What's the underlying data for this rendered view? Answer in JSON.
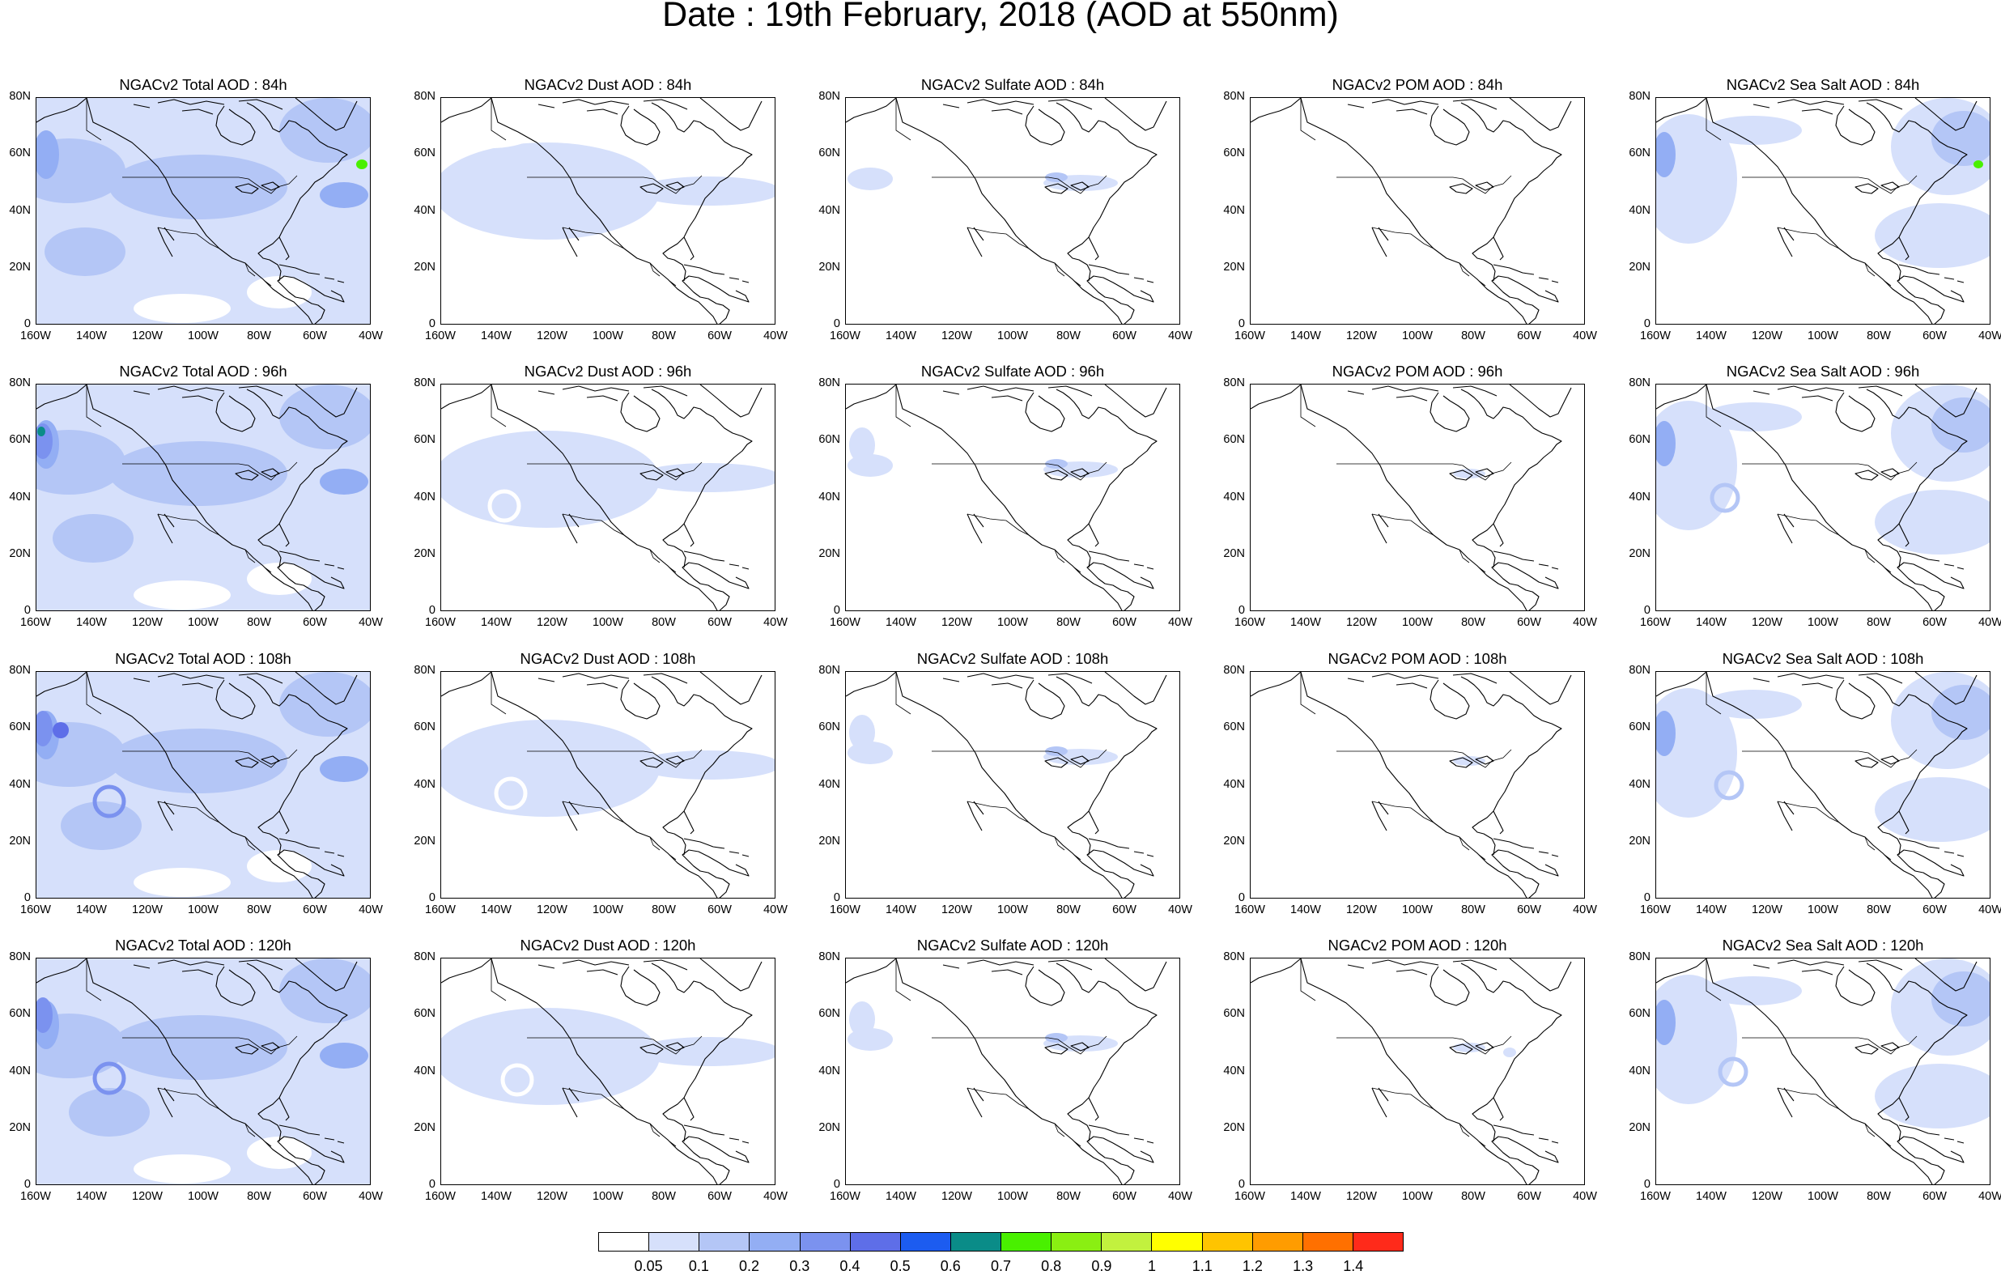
{
  "title": "Date : 19th February, 2018 (AOD at 550nm)",
  "panels": [
    {
      "title": "NGACv2 Total AOD : 84h",
      "species": "total",
      "hour": 84
    },
    {
      "title": "NGACv2 Dust AOD : 84h",
      "species": "dust",
      "hour": 84
    },
    {
      "title": "NGACv2 Sulfate AOD : 84h",
      "species": "sulfate",
      "hour": 84
    },
    {
      "title": "NGACv2 POM AOD : 84h",
      "species": "pom",
      "hour": 84
    },
    {
      "title": "NGACv2 Sea Salt AOD : 84h",
      "species": "seasalt",
      "hour": 84
    },
    {
      "title": "NGACv2 Total AOD : 96h",
      "species": "total",
      "hour": 96
    },
    {
      "title": "NGACv2 Dust AOD : 96h",
      "species": "dust",
      "hour": 96
    },
    {
      "title": "NGACv2 Sulfate AOD : 96h",
      "species": "sulfate",
      "hour": 96
    },
    {
      "title": "NGACv2 POM AOD : 96h",
      "species": "pom",
      "hour": 96
    },
    {
      "title": "NGACv2 Sea Salt AOD : 96h",
      "species": "seasalt",
      "hour": 96
    },
    {
      "title": "NGACv2 Total AOD : 108h",
      "species": "total",
      "hour": 108
    },
    {
      "title": "NGACv2 Dust AOD : 108h",
      "species": "dust",
      "hour": 108
    },
    {
      "title": "NGACv2 Sulfate AOD : 108h",
      "species": "sulfate",
      "hour": 108
    },
    {
      "title": "NGACv2 POM AOD : 108h",
      "species": "pom",
      "hour": 108
    },
    {
      "title": "NGACv2 Sea Salt AOD : 108h",
      "species": "seasalt",
      "hour": 108
    },
    {
      "title": "NGACv2 Total AOD : 120h",
      "species": "total",
      "hour": 120
    },
    {
      "title": "NGACv2 Dust AOD : 120h",
      "species": "dust",
      "hour": 120
    },
    {
      "title": "NGACv2 Sulfate AOD : 120h",
      "species": "sulfate",
      "hour": 120
    },
    {
      "title": "NGACv2 POM AOD : 120h",
      "species": "pom",
      "hour": 120
    },
    {
      "title": "NGACv2 Sea Salt  AOD : 120h",
      "species": "seasalt",
      "hour": 120
    }
  ],
  "axes": {
    "lat_ticks": [
      "0",
      "20N",
      "40N",
      "60N",
      "80N"
    ],
    "lon_ticks": [
      "160W",
      "140W",
      "120W",
      "100W",
      "80W",
      "60W",
      "40W"
    ],
    "lat_range": [
      0,
      80
    ],
    "lon_range": [
      -160,
      -40
    ]
  },
  "colorbar": {
    "labels": [
      "0.05",
      "0.1",
      "0.2",
      "0.3",
      "0.4",
      "0.5",
      "0.6",
      "0.7",
      "0.8",
      "0.9",
      "1",
      "1.1",
      "1.2",
      "1.3",
      "1.4"
    ],
    "colors": [
      "#ffffff",
      "#d6e0fb",
      "#b4c6f6",
      "#93aef4",
      "#7b92ef",
      "#5e6ee8",
      "#1c5cf0",
      "#0a8c88",
      "#49f000",
      "#8aef12",
      "#c2f13e",
      "#ffff00",
      "#ffc400",
      "#ff9c00",
      "#ff7000",
      "#ff2a1a"
    ]
  }
}
